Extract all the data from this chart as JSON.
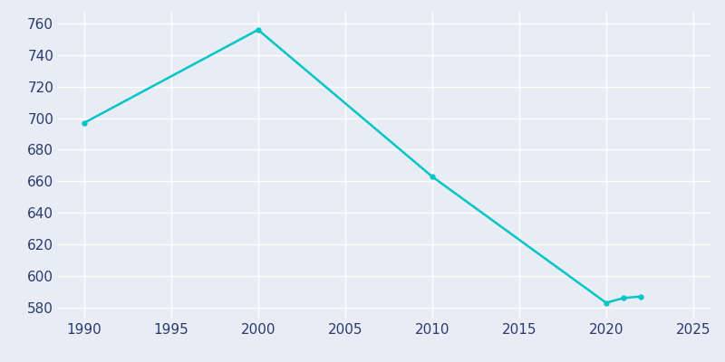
{
  "years": [
    1990,
    2000,
    2010,
    2020,
    2021,
    2022
  ],
  "population": [
    697,
    756,
    663,
    583,
    586,
    587
  ],
  "line_color": "#00C5C5",
  "marker": "o",
  "marker_size": 3.5,
  "bg_color": "#E8ECF5",
  "grid_color": "#ffffff",
  "xlim": [
    1988.5,
    2026
  ],
  "ylim": [
    573,
    768
  ],
  "xticks": [
    1990,
    1995,
    2000,
    2005,
    2010,
    2015,
    2020,
    2025
  ],
  "yticks": [
    580,
    600,
    620,
    640,
    660,
    680,
    700,
    720,
    740,
    760
  ],
  "tick_label_color": "#2b3a6e",
  "tick_fontsize": 11,
  "linewidth": 1.8
}
